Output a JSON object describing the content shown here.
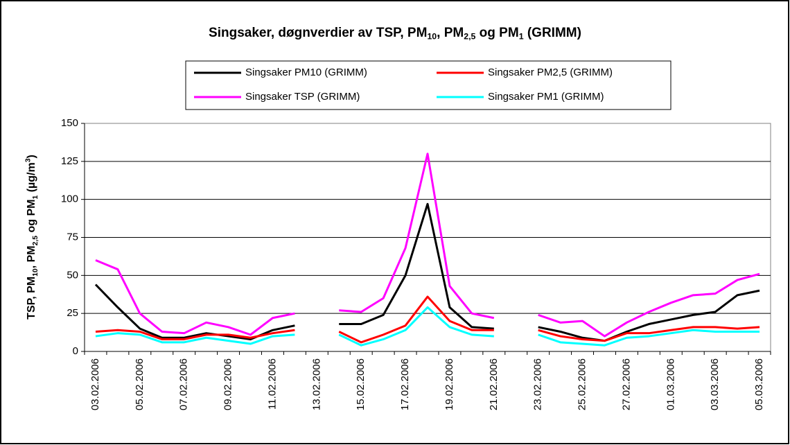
{
  "chart_data": {
    "type": "line",
    "title": [
      {
        "text": "Singsaker, døgnverdier av TSP, PM"
      },
      {
        "sub": "10"
      },
      {
        "text": ", PM"
      },
      {
        "sub": "2,5"
      },
      {
        "text": " og PM"
      },
      {
        "sub": "1"
      },
      {
        "text": " (GRIMM)"
      }
    ],
    "y_label": [
      {
        "text": "TSP, PM"
      },
      {
        "sub": "10"
      },
      {
        "text": ", PM"
      },
      {
        "sub": "2,5"
      },
      {
        "text": " og PM"
      },
      {
        "sub": "1"
      },
      {
        "text": " (µg/m"
      },
      {
        "sup": "3"
      },
      {
        "text": ")"
      }
    ],
    "categories": [
      "03.02.2006",
      null,
      "05.02.2006",
      null,
      "07.02.2006",
      null,
      "09.02.2006",
      null,
      "11.02.2006",
      null,
      "13.02.2006",
      null,
      "15.02.2006",
      null,
      "17.02.2006",
      null,
      "19.02.2006",
      null,
      "21.02.2006",
      null,
      "23.02.2006",
      null,
      "25.02.2006",
      null,
      "27.02.2006",
      null,
      "01.03.2006",
      null,
      "03.03.2006",
      null,
      "05.03.2006"
    ],
    "series": [
      {
        "name": "Singsaker PM10 (GRIMM)",
        "color": "#000000",
        "values": [
          44,
          29,
          15,
          9,
          9,
          12,
          10,
          8,
          14,
          17,
          null,
          18,
          18,
          24,
          50,
          97,
          29,
          16,
          15,
          null,
          16,
          13,
          9,
          7,
          13,
          18,
          21,
          24,
          26,
          37,
          40
        ]
      },
      {
        "name": "Singsaker PM2,5 (GRIMM)",
        "color": "#ff0000",
        "values": [
          13,
          14,
          13,
          8,
          8,
          11,
          11,
          9,
          12,
          14,
          null,
          13,
          6,
          11,
          17,
          36,
          20,
          14,
          14,
          null,
          14,
          10,
          8,
          7,
          12,
          12,
          14,
          16,
          16,
          15,
          16
        ]
      },
      {
        "name": "Singsaker TSP (GRIMM)",
        "color": "#ff00ff",
        "values": [
          60,
          54,
          25,
          13,
          12,
          19,
          16,
          11,
          22,
          25,
          null,
          27,
          26,
          35,
          68,
          130,
          43,
          25,
          22,
          null,
          24,
          19,
          20,
          10,
          19,
          26,
          32,
          37,
          38,
          47,
          51
        ]
      },
      {
        "name": "Singsaker PM1 (GRIMM)",
        "color": "#00ffff",
        "values": [
          10,
          12,
          11,
          6,
          6,
          9,
          7,
          5,
          10,
          11,
          null,
          11,
          4,
          8,
          14,
          29,
          16,
          11,
          10,
          null,
          11,
          6,
          5,
          4,
          9,
          10,
          12,
          14,
          13,
          13,
          13
        ]
      }
    ],
    "ylim": [
      0,
      150
    ],
    "yticks": [
      0,
      25,
      50,
      75,
      100,
      125,
      150
    ],
    "grid": true
  }
}
